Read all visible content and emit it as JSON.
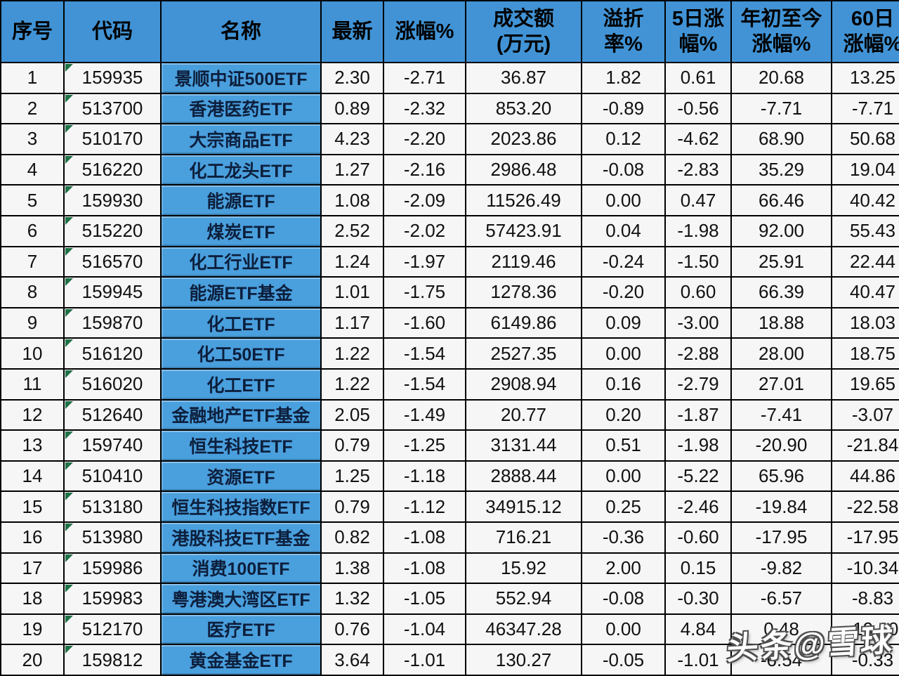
{
  "chart_data": {
    "type": "table",
    "column_keys": [
      "idx",
      "code",
      "name",
      "last",
      "change",
      "turnover",
      "premium",
      "chg5d",
      "ytd",
      "chg60d"
    ],
    "columns": [
      "序号",
      "代码",
      "名称",
      "最新",
      "涨幅%",
      "成交额\n(万元)",
      "溢折\n率%",
      "5日涨\n幅%",
      "年初至今\n涨幅%",
      "60日\n涨幅%"
    ],
    "rows": [
      [
        "1",
        "159935",
        "景顺中证500ETF",
        "2.30",
        "-2.71",
        "36.87",
        "1.82",
        "0.61",
        "20.68",
        "13.25"
      ],
      [
        "2",
        "513700",
        "香港医药ETF",
        "0.89",
        "-2.32",
        "853.20",
        "-0.89",
        "-0.56",
        "-7.71",
        "-7.71"
      ],
      [
        "3",
        "510170",
        "大宗商品ETF",
        "4.23",
        "-2.20",
        "2023.86",
        "0.12",
        "-4.62",
        "68.90",
        "50.68"
      ],
      [
        "4",
        "516220",
        "化工龙头ETF",
        "1.27",
        "-2.16",
        "2986.48",
        "-0.08",
        "-2.83",
        "35.29",
        "19.04"
      ],
      [
        "5",
        "159930",
        "能源ETF",
        "1.08",
        "-2.09",
        "11526.49",
        "0.00",
        "0.47",
        "66.46",
        "40.42"
      ],
      [
        "6",
        "515220",
        "煤炭ETF",
        "2.52",
        "-2.02",
        "57423.91",
        "0.04",
        "-1.98",
        "92.00",
        "55.43"
      ],
      [
        "7",
        "516570",
        "化工行业ETF",
        "1.24",
        "-1.97",
        "2119.46",
        "-0.24",
        "-1.50",
        "25.91",
        "22.44"
      ],
      [
        "8",
        "159945",
        "能源ETF基金",
        "1.01",
        "-1.75",
        "1278.36",
        "-0.20",
        "0.60",
        "66.39",
        "40.47"
      ],
      [
        "9",
        "159870",
        "化工ETF",
        "1.17",
        "-1.60",
        "6149.86",
        "0.09",
        "-3.00",
        "18.88",
        "18.03"
      ],
      [
        "10",
        "516120",
        "化工50ETF",
        "1.22",
        "-1.54",
        "2527.35",
        "0.00",
        "-2.88",
        "28.00",
        "18.75"
      ],
      [
        "11",
        "516020",
        "化工ETF",
        "1.22",
        "-1.54",
        "2908.94",
        "0.16",
        "-2.79",
        "27.01",
        "19.65"
      ],
      [
        "12",
        "512640",
        "金融地产ETF基金",
        "2.05",
        "-1.49",
        "20.77",
        "0.20",
        "-1.87",
        "-7.41",
        "-3.07"
      ],
      [
        "13",
        "159740",
        "恒生科技ETF",
        "0.79",
        "-1.25",
        "3131.44",
        "0.51",
        "-1.98",
        "-20.90",
        "-21.84"
      ],
      [
        "14",
        "510410",
        "资源ETF",
        "1.25",
        "-1.18",
        "2888.44",
        "0.00",
        "-5.22",
        "65.96",
        "44.86"
      ],
      [
        "15",
        "513180",
        "恒生科技指数ETF",
        "0.79",
        "-1.12",
        "34915.12",
        "0.25",
        "-2.46",
        "-19.84",
        "-22.58"
      ],
      [
        "16",
        "513980",
        "港股科技ETF基金",
        "0.82",
        "-1.08",
        "716.21",
        "-0.36",
        "-0.60",
        "-17.95",
        "-17.95"
      ],
      [
        "17",
        "159986",
        "消费100ETF",
        "1.38",
        "-1.08",
        "15.92",
        "2.00",
        "0.15",
        "-9.82",
        "-10.34"
      ],
      [
        "18",
        "159983",
        "粤港澳大湾区ETF",
        "1.32",
        "-1.05",
        "552.94",
        "-0.08",
        "-0.30",
        "-6.57",
        "-8.83"
      ],
      [
        "19",
        "512170",
        "医疗ETF",
        "0.76",
        "-1.04",
        "46347.28",
        "0.00",
        "4.84",
        "0.48",
        "-19.10"
      ],
      [
        "20",
        "159812",
        "黄金基金ETF",
        "3.64",
        "-1.01",
        "130.27",
        "-0.05",
        "-1.01",
        "-6.54",
        "-0.33"
      ]
    ]
  },
  "watermark": {
    "text": "头条@雪球"
  },
  "colors": {
    "header_bg": "#4193d5",
    "name_bg": "#4a9fdd",
    "cell_bg": "#f6f6f6",
    "border": "#000000",
    "flag_green": "#1e7145",
    "watermark_fill": "#ffffff",
    "watermark_outline": "#4f4f4f"
  }
}
